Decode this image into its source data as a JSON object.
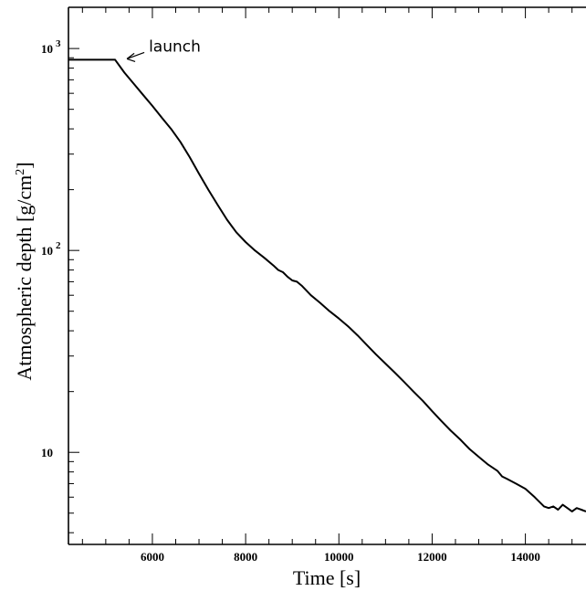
{
  "chart_data": {
    "type": "line",
    "title": "",
    "xlabel": "Time [s]",
    "ylabel_main": "Atmospheric depth [g/cm",
    "ylabel_sup": "2",
    "ylabel_close": "]",
    "xlim": [
      4200,
      15300
    ],
    "ylim": [
      3.5,
      1600
    ],
    "y_scale": "log",
    "grid": false,
    "x_ticks": [
      {
        "value": 6000,
        "label": "6000"
      },
      {
        "value": 8000,
        "label": "8000"
      },
      {
        "value": 10000,
        "label": "10000"
      },
      {
        "value": 12000,
        "label": "12000"
      },
      {
        "value": 14000,
        "label": "14000"
      }
    ],
    "y_ticks": [
      {
        "value": 10,
        "base": "10",
        "exp": ""
      },
      {
        "value": 100,
        "base": "10",
        "exp": "2"
      },
      {
        "value": 1000,
        "base": "10",
        "exp": "3"
      }
    ],
    "annotation": {
      "text": "launch",
      "x": 5200,
      "y": 880
    },
    "series": [
      {
        "x": [
          4200,
          5000,
          5200,
          5400,
          5600,
          5800,
          6000,
          6200,
          6400,
          6600,
          6800,
          7000,
          7200,
          7400,
          7600,
          7800,
          8000,
          8200,
          8400,
          8600,
          8700,
          8800,
          8900,
          9000,
          9100,
          9200,
          9400,
          9600,
          9800,
          10000,
          10200,
          10400,
          10600,
          10800,
          11000,
          11200,
          11400,
          11600,
          11800,
          12000,
          12200,
          12400,
          12600,
          12800,
          13000,
          13200,
          13400,
          13500,
          13600,
          13800,
          14000,
          14200,
          14400,
          14500,
          14600,
          14700,
          14800,
          14900,
          15000,
          15100,
          15200,
          15300
        ],
        "y": [
          880,
          880,
          880,
          760,
          670,
          590,
          520,
          455,
          400,
          345,
          290,
          240,
          200,
          168,
          142,
          123,
          110,
          100,
          92,
          84,
          80,
          78,
          74,
          71,
          70,
          67,
          60,
          55,
          50,
          46,
          42,
          38,
          34,
          30.5,
          27.5,
          24.8,
          22.3,
          20,
          18,
          16,
          14.3,
          12.8,
          11.6,
          10.4,
          9.5,
          8.7,
          8.1,
          7.6,
          7.4,
          7.0,
          6.6,
          6.0,
          5.4,
          5.3,
          5.4,
          5.2,
          5.5,
          5.3,
          5.1,
          5.3,
          5.2,
          5.1
        ]
      }
    ]
  }
}
